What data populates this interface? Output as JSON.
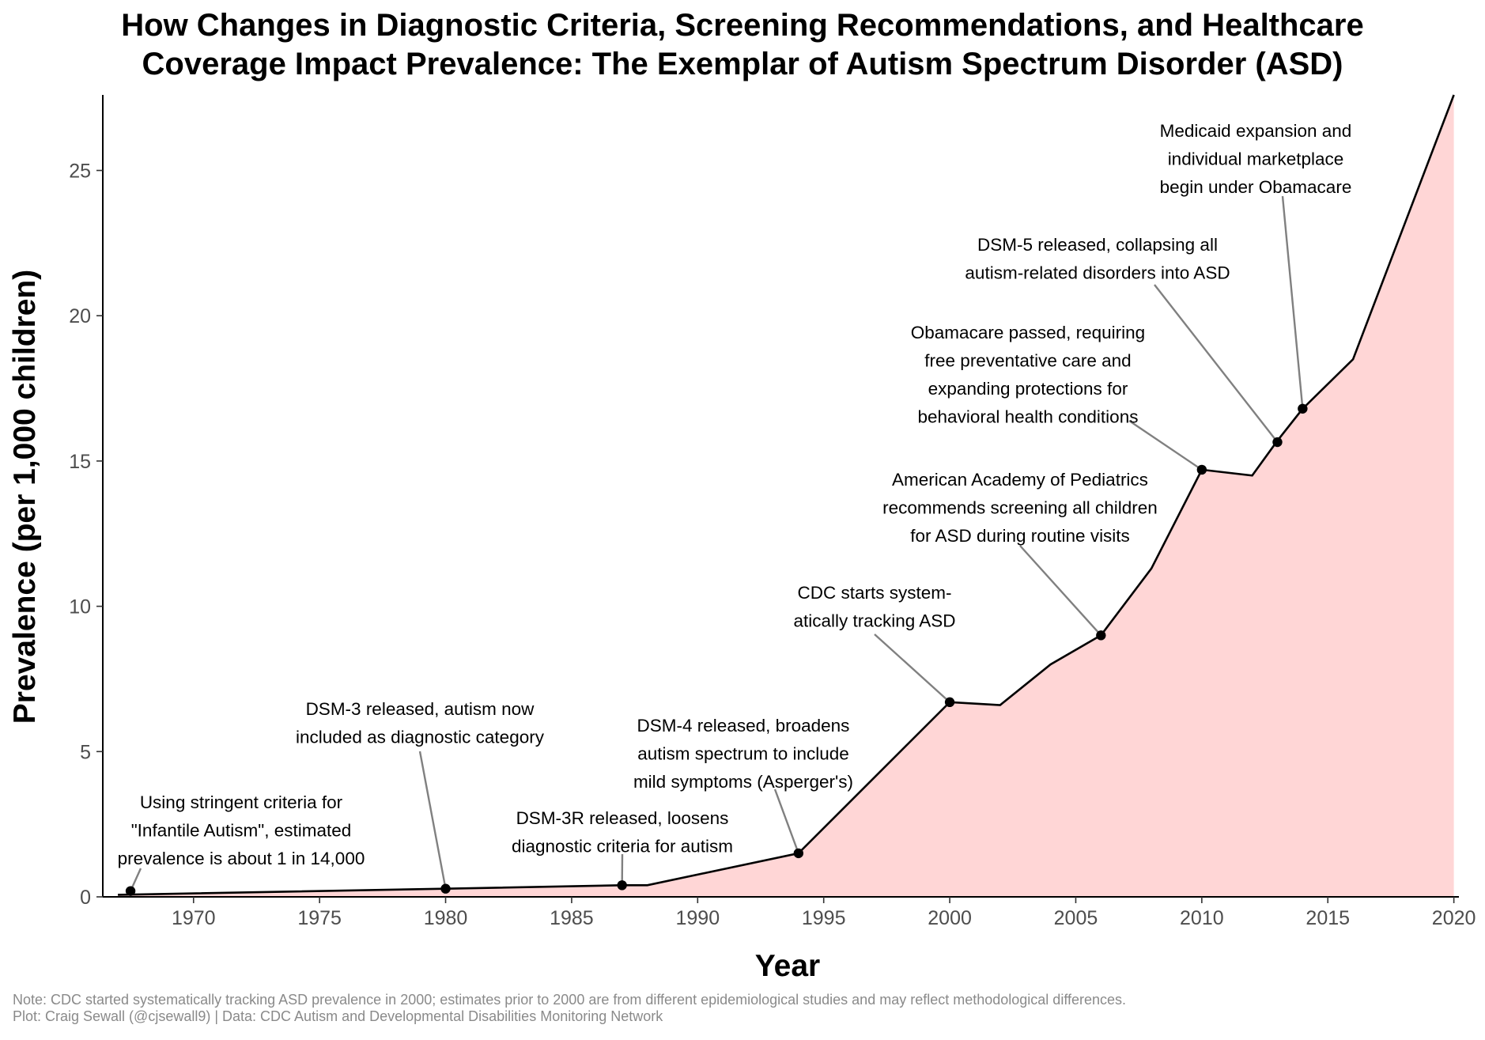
{
  "chart_data": {
    "type": "area",
    "title": [
      "How Changes in Diagnostic Criteria, Screening Recommendations, and Healthcare",
      "Coverage Impact Prevalence: The Exemplar of Autism Spectrum Disorder (ASD)"
    ],
    "xlabel": "Year",
    "ylabel": "Prevalence (per 1,000 children)",
    "xlim": [
      1966.4,
      2020.2
    ],
    "ylim": [
      0,
      27.6
    ],
    "x_ticks": [
      1970,
      1975,
      1980,
      1985,
      1990,
      1995,
      2000,
      2005,
      2010,
      2015,
      2020
    ],
    "y_ticks": [
      0,
      5,
      10,
      15,
      20,
      25
    ],
    "grid": false,
    "colors": {
      "area_fill": "#ffd6d6",
      "line": "#000000",
      "point": "#000000",
      "leader": "#808080"
    },
    "series": [
      {
        "x": [
          1967,
          1980,
          1987,
          1988,
          1994,
          2000,
          2002,
          2004,
          2006,
          2008,
          2010,
          2012,
          2013,
          2014,
          2016,
          2020
        ],
        "values": [
          0.07,
          0.28,
          0.4,
          0.4,
          1.5,
          6.7,
          6.6,
          8.0,
          9.0,
          11.3,
          14.7,
          14.5,
          15.7,
          16.8,
          18.5,
          27.6
        ]
      }
    ],
    "annotations": [
      {
        "x": 1967.5,
        "y": 0.2,
        "lines": [
          "Using stringent criteria for",
          "\"Infantile Autism\", estimated",
          "prevalence is about 1 in 14,000"
        ]
      },
      {
        "x": 1980,
        "y": 0.28,
        "lines": [
          "DSM-3 released, autism now",
          "included as diagnostic category"
        ]
      },
      {
        "x": 1987,
        "y": 0.4,
        "lines": [
          "DSM-3R released, loosens",
          "diagnostic criteria for autism"
        ]
      },
      {
        "x": 1994,
        "y": 1.5,
        "lines": [
          "DSM-4 released, broadens",
          "autism spectrum to include",
          "mild symptoms (Asperger's)"
        ]
      },
      {
        "x": 2000,
        "y": 6.7,
        "lines": [
          "CDC starts system-",
          "atically tracking ASD"
        ]
      },
      {
        "x": 2006,
        "y": 9.0,
        "lines": [
          "American Academy of Pediatrics",
          "recommends screening all children",
          "for ASD during routine visits"
        ]
      },
      {
        "x": 2010,
        "y": 14.7,
        "lines": [
          "Obamacare passed, requiring",
          "free preventative care and",
          "expanding protections for",
          "behavioral health conditions"
        ]
      },
      {
        "x": 2013,
        "y": 15.65,
        "lines": [
          "DSM-5 released, collapsing all",
          "autism-related disorders into ASD"
        ]
      },
      {
        "x": 2014,
        "y": 16.8,
        "lines": [
          "Medicaid expansion and",
          "individual marketplace",
          "begin under Obamacare"
        ]
      }
    ]
  },
  "caption": [
    "Note: CDC started systematically tracking ASD prevalence in 2000; estimates prior to 2000 are from different epidemiological studies and may reflect methodological differences.",
    "Plot: Craig Sewall (@cjsewall9) | Data: CDC Autism and Developmental Disabilities Monitoring Network"
  ]
}
